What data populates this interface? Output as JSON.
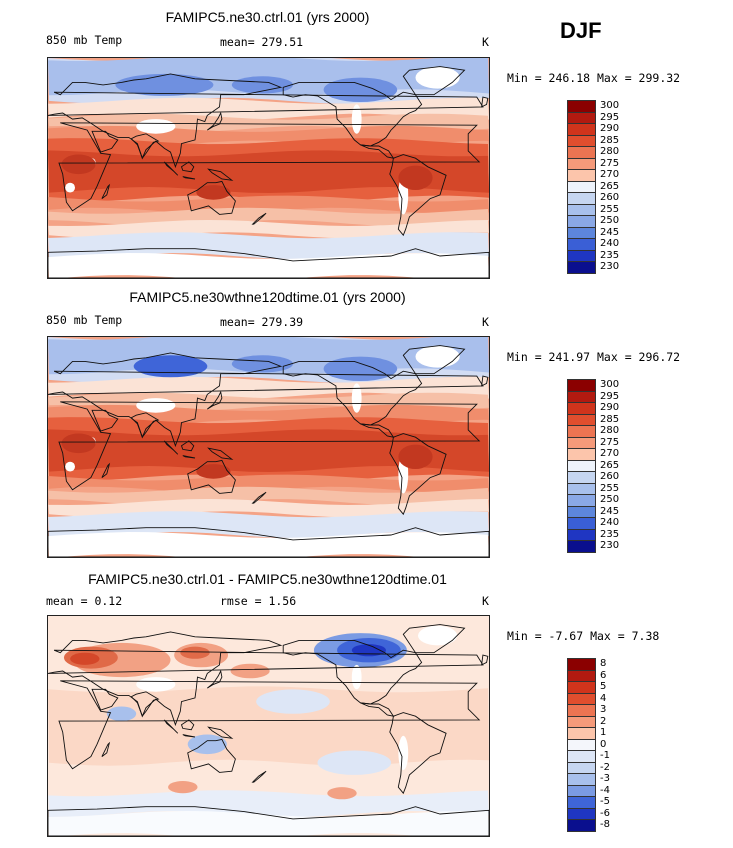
{
  "season": "DJF",
  "panels": [
    {
      "title": "FAMIPC5.ne30.ctrl.01 (yrs 2000)",
      "left_label": "850 mb Temp",
      "center_label": "mean=  279.51",
      "right_label": "K",
      "minmax": "Min = 246.18 Max = 299.32",
      "colorbar": {
        "labels": [
          "300",
          "295",
          "290",
          "285",
          "280",
          "275",
          "270",
          "265",
          "260",
          "255",
          "250",
          "245",
          "240",
          "235",
          "230"
        ],
        "colors": [
          "#8b0000",
          "#b21a10",
          "#d0341c",
          "#e04e2e",
          "#ec7452",
          "#f59a7a",
          "#fcc5ab",
          "#eef3fb",
          "#c6d6f1",
          "#a8c0ec",
          "#8aa8e6",
          "#5d86dc",
          "#3a5fd6",
          "#1f36c2",
          "#0a0f8e"
        ]
      },
      "field": {
        "background": "#f4a386",
        "bands": [
          {
            "color": "#d2dcf3",
            "lat_top": 90,
            "lat_bot": 55
          },
          {
            "color": "#a9bfec",
            "lat_top": 90,
            "lat_bot": 62
          },
          {
            "color": "#fbe3d6",
            "lat_top": 55,
            "lat_bot": 42
          },
          {
            "color": "#f6c0a7",
            "lat_top": 42,
            "lat_bot": 32
          },
          {
            "color": "#f08d6c",
            "lat_top": 32,
            "lat_bot": 20
          },
          {
            "color": "#e6603e",
            "lat_top": 22,
            "lat_bot": -25
          },
          {
            "color": "#d44729",
            "lat_top": 12,
            "lat_bot": -18
          },
          {
            "color": "#f08d6c",
            "lat_top": -25,
            "lat_bot": -35
          },
          {
            "color": "#f6c0a7",
            "lat_top": -35,
            "lat_bot": -45
          },
          {
            "color": "#fbe3d6",
            "lat_top": -45,
            "lat_bot": -55
          },
          {
            "color": "#dde6f6",
            "lat_top": -55,
            "lat_bot": -72
          },
          {
            "color": "#ffffff",
            "lat_top": -72,
            "lat_bot": -90
          }
        ],
        "blobs": [
          {
            "color": "#6f90e0",
            "lon": 95,
            "lat": 68,
            "rx": 40,
            "ry": 9
          },
          {
            "color": "#6f90e0",
            "lon": 175,
            "lat": 68,
            "rx": 25,
            "ry": 7
          },
          {
            "color": "#6f90e0",
            "lon": 255,
            "lat": 64,
            "rx": 30,
            "ry": 10
          },
          {
            "color": "#ffffff",
            "lon": 88,
            "lat": 34,
            "rx": 16,
            "ry": 6
          },
          {
            "color": "#ffffff",
            "lon": 318,
            "lat": 74,
            "rx": 18,
            "ry": 9
          },
          {
            "color": "#ffffff",
            "lon": 290,
            "lat": -22,
            "rx": 4,
            "ry": 16
          },
          {
            "color": "#ffffff",
            "lon": 252,
            "lat": 40,
            "rx": 4,
            "ry": 12
          },
          {
            "color": "#ffffff",
            "lon": 36,
            "lat": 4,
            "rx": 3,
            "ry": 4
          },
          {
            "color": "#ffffff",
            "lon": 18,
            "lat": -16,
            "rx": 4,
            "ry": 4
          },
          {
            "color": "#c23820",
            "lon": 25,
            "lat": 3,
            "rx": 14,
            "ry": 8
          },
          {
            "color": "#c23820",
            "lon": 300,
            "lat": -8,
            "rx": 14,
            "ry": 10
          },
          {
            "color": "#c23820",
            "lon": 135,
            "lat": -20,
            "rx": 14,
            "ry": 6
          }
        ]
      }
    },
    {
      "title": "FAMIPC5.ne30wthne120dtime.01 (yrs 2000)",
      "left_label": "850 mb Temp",
      "center_label": "mean=  279.39",
      "right_label": "K",
      "minmax": "Min = 241.97 Max = 296.72",
      "colorbar": {
        "labels": [
          "300",
          "295",
          "290",
          "285",
          "280",
          "275",
          "270",
          "265",
          "260",
          "255",
          "250",
          "245",
          "240",
          "235",
          "230"
        ],
        "colors": [
          "#8b0000",
          "#b21a10",
          "#d0341c",
          "#e04e2e",
          "#ec7452",
          "#f59a7a",
          "#fcc5ab",
          "#eef3fb",
          "#c6d6f1",
          "#a8c0ec",
          "#8aa8e6",
          "#5d86dc",
          "#3a5fd6",
          "#1f36c2",
          "#0a0f8e"
        ]
      },
      "field": {
        "background": "#f4a386",
        "bands": [
          {
            "color": "#d2dcf3",
            "lat_top": 90,
            "lat_bot": 55
          },
          {
            "color": "#a9bfec",
            "lat_top": 90,
            "lat_bot": 62
          },
          {
            "color": "#fbe3d6",
            "lat_top": 55,
            "lat_bot": 42
          },
          {
            "color": "#f6c0a7",
            "lat_top": 42,
            "lat_bot": 32
          },
          {
            "color": "#f08d6c",
            "lat_top": 32,
            "lat_bot": 20
          },
          {
            "color": "#e6603e",
            "lat_top": 22,
            "lat_bot": -25
          },
          {
            "color": "#d44729",
            "lat_top": 12,
            "lat_bot": -18
          },
          {
            "color": "#f08d6c",
            "lat_top": -25,
            "lat_bot": -35
          },
          {
            "color": "#f6c0a7",
            "lat_top": -35,
            "lat_bot": -45
          },
          {
            "color": "#fbe3d6",
            "lat_top": -45,
            "lat_bot": -55
          },
          {
            "color": "#dde6f6",
            "lat_top": -55,
            "lat_bot": -72
          },
          {
            "color": "#ffffff",
            "lat_top": -72,
            "lat_bot": -90
          }
        ],
        "blobs": [
          {
            "color": "#3f65d8",
            "lon": 100,
            "lat": 66,
            "rx": 30,
            "ry": 9
          },
          {
            "color": "#6f90e0",
            "lon": 175,
            "lat": 68,
            "rx": 25,
            "ry": 7
          },
          {
            "color": "#6f90e0",
            "lon": 255,
            "lat": 64,
            "rx": 30,
            "ry": 10
          },
          {
            "color": "#ffffff",
            "lon": 88,
            "lat": 34,
            "rx": 16,
            "ry": 6
          },
          {
            "color": "#ffffff",
            "lon": 318,
            "lat": 74,
            "rx": 18,
            "ry": 9
          },
          {
            "color": "#ffffff",
            "lon": 290,
            "lat": -22,
            "rx": 4,
            "ry": 16
          },
          {
            "color": "#ffffff",
            "lon": 252,
            "lat": 40,
            "rx": 4,
            "ry": 12
          },
          {
            "color": "#ffffff",
            "lon": 36,
            "lat": 4,
            "rx": 3,
            "ry": 4
          },
          {
            "color": "#ffffff",
            "lon": 18,
            "lat": -16,
            "rx": 4,
            "ry": 4
          },
          {
            "color": "#c23820",
            "lon": 25,
            "lat": 3,
            "rx": 14,
            "ry": 8
          },
          {
            "color": "#c23820",
            "lon": 300,
            "lat": -8,
            "rx": 14,
            "ry": 10
          },
          {
            "color": "#c23820",
            "lon": 135,
            "lat": -20,
            "rx": 14,
            "ry": 6
          }
        ]
      }
    },
    {
      "title": "FAMIPC5.ne30.ctrl.01 - FAMIPC5.ne30wthne120dtime.01",
      "left_label": "mean =    0.12",
      "center_label": "rmse =    1.56",
      "right_label": "K",
      "minmax": "Min =  -7.67 Max =   7.38",
      "colorbar": {
        "labels": [
          "8",
          "6",
          "5",
          "4",
          "3",
          "2",
          "1",
          "0",
          "-1",
          "-2",
          "-3",
          "-4",
          "-5",
          "-6",
          "-8"
        ],
        "colors": [
          "#8b0000",
          "#b21a10",
          "#d0341c",
          "#e04e2e",
          "#ec7452",
          "#f59a7a",
          "#fcc5ab",
          "#f4f6fb",
          "#dde6f6",
          "#c6d6f1",
          "#a8c0ec",
          "#7b9be3",
          "#3f65d8",
          "#1f36c2",
          "#0a0f8e"
        ]
      },
      "field": {
        "background": "#fde8dc",
        "bands": [
          {
            "color": "#fbd8c6",
            "lat_top": 30,
            "lat_bot": -30
          },
          {
            "color": "#e8eef9",
            "lat_top": -55,
            "lat_bot": -72
          },
          {
            "color": "#f9fbfe",
            "lat_top": -72,
            "lat_bot": -90
          }
        ],
        "blobs": [
          {
            "color": "#f2a184",
            "lon": 60,
            "lat": 54,
            "rx": 40,
            "ry": 14
          },
          {
            "color": "#e06a48",
            "lon": 35,
            "lat": 56,
            "rx": 22,
            "ry": 9
          },
          {
            "color": "#d44729",
            "lon": 30,
            "lat": 55,
            "rx": 12,
            "ry": 5
          },
          {
            "color": "#f2a184",
            "lon": 125,
            "lat": 58,
            "rx": 22,
            "ry": 10
          },
          {
            "color": "#e06a48",
            "lon": 120,
            "lat": 60,
            "rx": 12,
            "ry": 5
          },
          {
            "color": "#ffffff",
            "lon": 88,
            "lat": 34,
            "rx": 16,
            "ry": 6
          },
          {
            "color": "#f2a184",
            "lon": 165,
            "lat": 45,
            "rx": 16,
            "ry": 6
          },
          {
            "color": "#dde6f6",
            "lon": 200,
            "lat": 20,
            "rx": 30,
            "ry": 10
          },
          {
            "color": "#dde6f6",
            "lon": 250,
            "lat": -30,
            "rx": 30,
            "ry": 10
          },
          {
            "color": "#7b9be3",
            "lon": 255,
            "lat": 62,
            "rx": 38,
            "ry": 14
          },
          {
            "color": "#3f65d8",
            "lon": 262,
            "lat": 62,
            "rx": 26,
            "ry": 10
          },
          {
            "color": "#1f36c2",
            "lon": 262,
            "lat": 62,
            "rx": 14,
            "ry": 5
          },
          {
            "color": "#ffffff",
            "lon": 318,
            "lat": 74,
            "rx": 16,
            "ry": 8
          },
          {
            "color": "#a8c0ec",
            "lon": 130,
            "lat": -15,
            "rx": 16,
            "ry": 8
          },
          {
            "color": "#a8c0ec",
            "lon": 60,
            "lat": 10,
            "rx": 12,
            "ry": 6
          },
          {
            "color": "#f2a184",
            "lon": 110,
            "lat": -50,
            "rx": 12,
            "ry": 5
          },
          {
            "color": "#f2a184",
            "lon": 240,
            "lat": -55,
            "rx": 12,
            "ry": 5
          },
          {
            "color": "#ffffff",
            "lon": 290,
            "lat": -22,
            "rx": 4,
            "ry": 14
          },
          {
            "color": "#ffffff",
            "lon": 252,
            "lat": 40,
            "rx": 4,
            "ry": 10
          }
        ]
      }
    }
  ]
}
